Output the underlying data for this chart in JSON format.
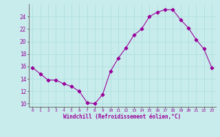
{
  "x": [
    0,
    1,
    2,
    3,
    4,
    5,
    6,
    7,
    8,
    9,
    10,
    11,
    12,
    13,
    14,
    15,
    16,
    17,
    18,
    19,
    20,
    21,
    22,
    23
  ],
  "y": [
    15.8,
    14.8,
    13.8,
    13.8,
    13.2,
    12.8,
    12.0,
    10.2,
    10.0,
    11.5,
    15.2,
    17.3,
    19.0,
    21.0,
    22.0,
    24.0,
    24.7,
    25.1,
    25.1,
    23.5,
    22.2,
    20.3,
    18.8,
    15.8
  ],
  "line_color": "#990099",
  "marker": "D",
  "bg_color": "#c8ecec",
  "grid_color": "#aadddd",
  "xlabel": "Windchill (Refroidissement éolien,°C)",
  "xlabel_color": "#990099",
  "tick_color": "#990099",
  "spine_color": "#777777",
  "ylim": [
    9.5,
    26.0
  ],
  "xlim": [
    -0.5,
    23.5
  ],
  "yticks": [
    10,
    12,
    14,
    16,
    18,
    20,
    22,
    24
  ],
  "xticks": [
    0,
    1,
    2,
    3,
    4,
    5,
    6,
    7,
    8,
    9,
    10,
    11,
    12,
    13,
    14,
    15,
    16,
    17,
    18,
    19,
    20,
    21,
    22,
    23
  ],
  "figsize": [
    3.2,
    2.0
  ],
  "dpi": 100
}
